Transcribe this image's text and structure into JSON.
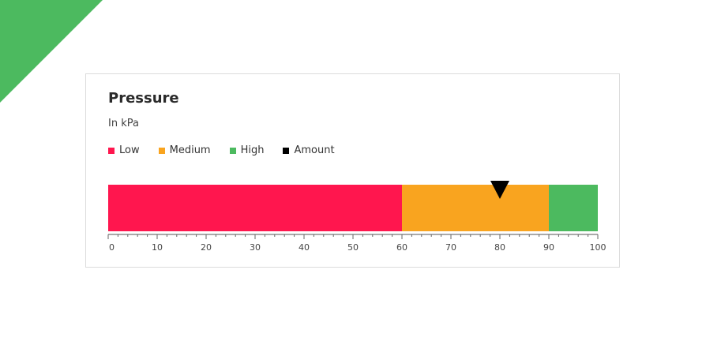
{
  "chart_data": {
    "type": "bullet",
    "title": "Pressure",
    "subtitle": "In kPa",
    "unit": "kPa",
    "axis": {
      "min": 0,
      "max": 100,
      "major_step": 10,
      "minor_step": 2
    },
    "ranges": [
      {
        "name": "Low",
        "from": 0,
        "to": 60,
        "color": "#ff164e"
      },
      {
        "name": "Medium",
        "from": 60,
        "to": 90,
        "color": "#f9a41f"
      },
      {
        "name": "High",
        "from": 90,
        "to": 100,
        "color": "#4cba5f"
      }
    ],
    "marker": {
      "name": "Amount",
      "value": 80,
      "color": "#000000"
    },
    "ticks": [
      "0",
      "10",
      "20",
      "30",
      "40",
      "50",
      "60",
      "70",
      "80",
      "90",
      "100"
    ]
  },
  "legend": [
    {
      "label": "Low",
      "color": "#ff164e"
    },
    {
      "label": "Medium",
      "color": "#f9a41f"
    },
    {
      "label": "High",
      "color": "#4cba5f"
    },
    {
      "label": "Amount",
      "color": "#000000"
    }
  ]
}
